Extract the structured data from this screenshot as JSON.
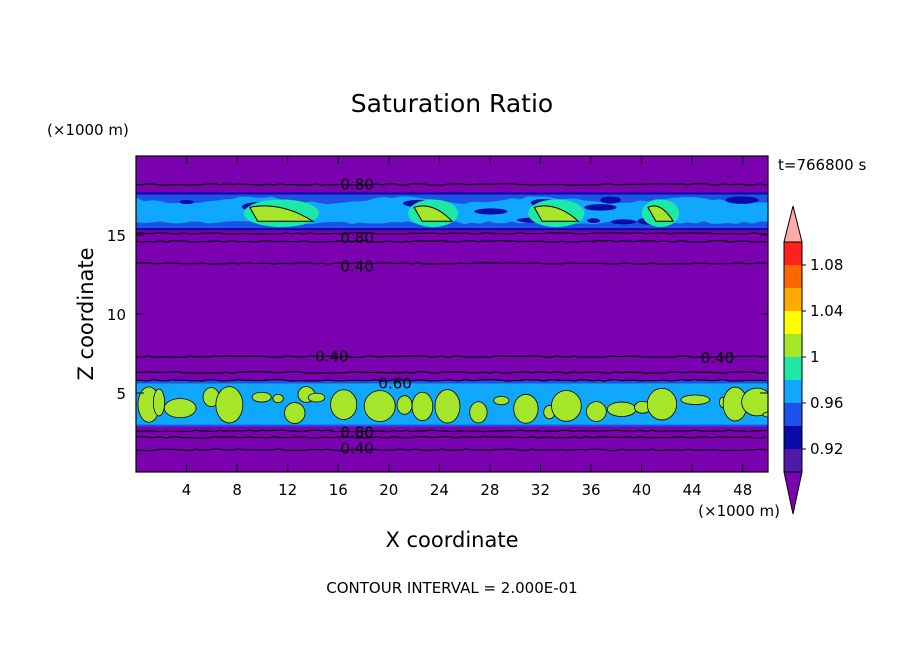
{
  "chart_data": {
    "type": "heatmap",
    "title": "Saturation Ratio",
    "xlabel": "X coordinate",
    "ylabel": "Z coordinate",
    "x_unit": "(×1000 m)",
    "y_unit": "(×1000 m)",
    "time_label": "t=766800 s",
    "footer": "CONTOUR INTERVAL = 2.000E-01",
    "xlim": [
      0,
      50
    ],
    "ylim": [
      0,
      20
    ],
    "x_ticks": [
      4,
      8,
      12,
      16,
      20,
      24,
      28,
      32,
      36,
      40,
      44,
      48
    ],
    "y_ticks": [
      5,
      10,
      15
    ],
    "contour_interval": 0.2,
    "background_value": 0.9,
    "contour_labels": [
      {
        "text": "0.80",
        "x": 17.5,
        "z": 18.2
      },
      {
        "text": "0.80",
        "x": 17.5,
        "z": 14.8
      },
      {
        "text": "0.40",
        "x": 17.5,
        "z": 13.0
      },
      {
        "text": "0.40",
        "x": 15.5,
        "z": 7.3
      },
      {
        "text": "0.40",
        "x": 46.0,
        "z": 7.2
      },
      {
        "text": "0.60",
        "x": 20.5,
        "z": 5.6
      },
      {
        "text": "0.80",
        "x": 17.5,
        "z": 2.5
      },
      {
        "text": "0.40",
        "x": 17.5,
        "z": 1.5
      }
    ],
    "contour_lines": [
      {
        "z": 18.2,
        "label": "0.80"
      },
      {
        "z": 15.1,
        "label": "0.80"
      },
      {
        "z": 14.6,
        "label": ""
      },
      {
        "z": 13.2,
        "label": "0.40"
      },
      {
        "z": 7.3,
        "label": "0.40"
      },
      {
        "z": 6.3,
        "label": ""
      },
      {
        "z": 5.8,
        "label": "0.60"
      },
      {
        "z": 2.6,
        "label": "0.80"
      },
      {
        "z": 2.2,
        "label": ""
      },
      {
        "z": 1.4,
        "label": "0.40"
      }
    ],
    "upper_cloud_layer": {
      "z_bottom": 15.5,
      "z_top": 17.5,
      "level": 0.97
    },
    "upper_cloud_patches": [
      {
        "x_start": 9.0,
        "x_end": 14.0,
        "level": 1.0
      },
      {
        "x_start": 22.0,
        "x_end": 25.0,
        "level": 1.0
      },
      {
        "x_start": 31.5,
        "x_end": 35.0,
        "level": 1.0
      },
      {
        "x_start": 40.5,
        "x_end": 42.5,
        "level": 1.0
      }
    ],
    "lower_cloud_layer": {
      "z_bottom": 3.0,
      "z_top": 5.6,
      "level": 0.98,
      "patch_level": 1.0
    },
    "colorbar": {
      "levels": [
        0.92,
        0.96,
        1,
        1.04,
        1.08
      ],
      "level_labels": [
        "0.92",
        "0.96",
        "1",
        "1.04",
        "1.08"
      ],
      "bands": [
        {
          "upper": 0.9,
          "color": "#7a00b0"
        },
        {
          "upper": 0.92,
          "color": "#4f1aa8"
        },
        {
          "upper": 0.94,
          "color": "#0a0aa8"
        },
        {
          "upper": 0.96,
          "color": "#1c52e8"
        },
        {
          "upper": 0.98,
          "color": "#10a8ff"
        },
        {
          "upper": 1.0,
          "color": "#1ee8a8"
        },
        {
          "upper": 1.02,
          "color": "#a6e62a"
        },
        {
          "upper": 1.04,
          "color": "#ffff00"
        },
        {
          "upper": 1.06,
          "color": "#ffaa00"
        },
        {
          "upper": 1.08,
          "color": "#ff6600"
        },
        {
          "upper": 1.1,
          "color": "#ff2020"
        },
        {
          "upper": 1.12,
          "color": "#ffaaaa"
        }
      ]
    }
  }
}
